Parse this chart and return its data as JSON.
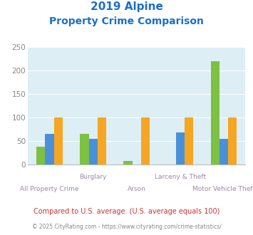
{
  "title_line1": "2019 Alpine",
  "title_line2": "Property Crime Comparison",
  "title_color": "#1a6fcc",
  "categories": [
    "All Property Crime",
    "Burglary",
    "Arson",
    "Larceny & Theft",
    "Motor Vehicle Theft"
  ],
  "series": {
    "Alpine": [
      38,
      65,
      8,
      0,
      220
    ],
    "New Jersey": [
      65,
      54,
      0,
      68,
      54
    ],
    "National": [
      100,
      100,
      100,
      100,
      100
    ]
  },
  "colors": {
    "Alpine": "#7dc142",
    "New Jersey": "#4a90d9",
    "National": "#f5a623"
  },
  "ylim": [
    0,
    250
  ],
  "yticks": [
    0,
    50,
    100,
    150,
    200,
    250
  ],
  "bg_color": "#ddeef5",
  "grid_color": "#ffffff",
  "footer_text1": "Compared to U.S. average. (U.S. average equals 100)",
  "footer_text2": "© 2025 CityRating.com - https://www.cityrating.com/crime-statistics/",
  "footer_color1": "#cc3333",
  "footer_color2": "#888888",
  "label_color": "#9988aa",
  "bar_width": 0.2,
  "offsets": [
    -0.2,
    0.0,
    0.2
  ]
}
